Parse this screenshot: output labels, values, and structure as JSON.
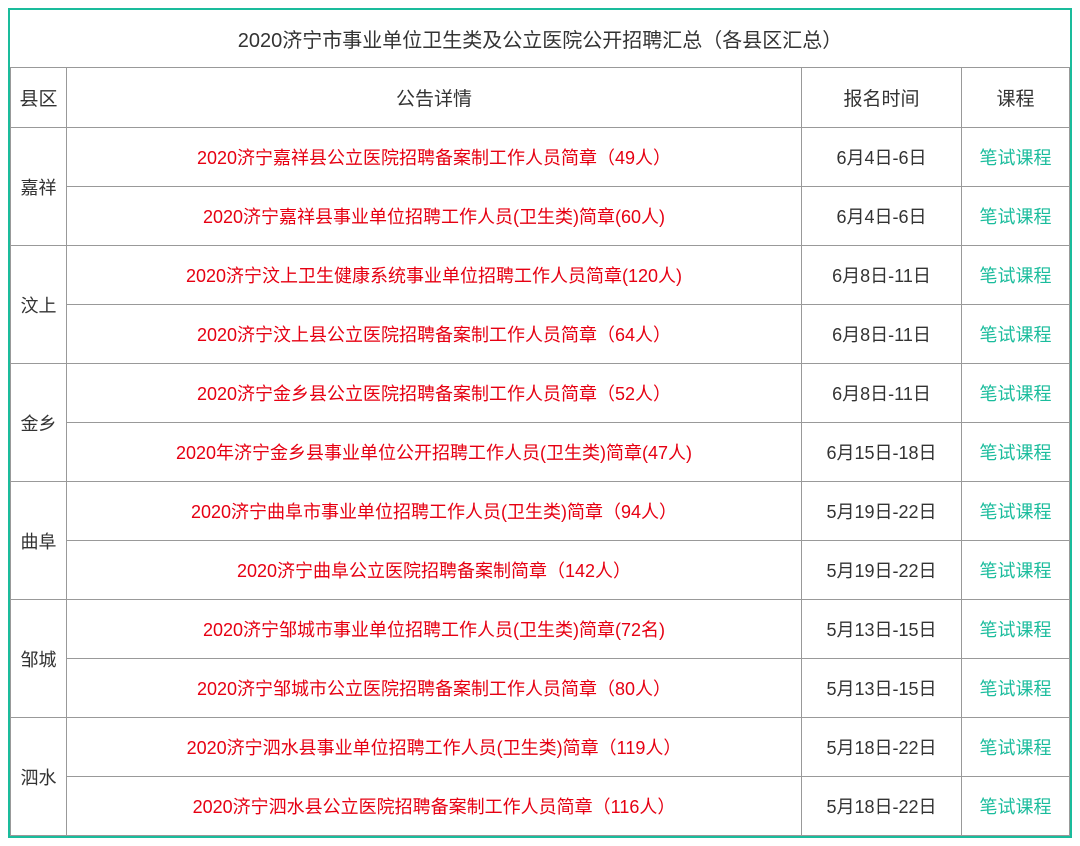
{
  "title": "2020济宁市事业单位卫生类及公立医院公开招聘汇总（各县区汇总）",
  "headers": {
    "county": "县区",
    "detail": "公告详情",
    "date": "报名时间",
    "course": "课程"
  },
  "colors": {
    "outer_border": "#1abc9c",
    "cell_border": "#999999",
    "text_black": "#333333",
    "link_red": "#e60012",
    "link_green": "#1abc9c",
    "background": "#ffffff"
  },
  "fonts": {
    "title_size": 20,
    "header_size": 19,
    "cell_size": 18
  },
  "layout": {
    "total_width": 1064,
    "col_county_width": 56,
    "col_date_width": 160,
    "col_course_width": 108
  },
  "groups": [
    {
      "county": "嘉祥",
      "rows": [
        {
          "detail": "2020济宁嘉祥县公立医院招聘备案制工作人员简章（49人）",
          "date": "6月4日-6日",
          "course": "笔试课程"
        },
        {
          "detail": "2020济宁嘉祥县事业单位招聘工作人员(卫生类)简章(60人)",
          "date": "6月4日-6日",
          "course": "笔试课程"
        }
      ]
    },
    {
      "county": "汶上",
      "rows": [
        {
          "detail": "2020济宁汶上卫生健康系统事业单位招聘工作人员简章(120人)",
          "date": "6月8日-11日",
          "course": "笔试课程"
        },
        {
          "detail": "2020济宁汶上县公立医院招聘备案制工作人员简章（64人）",
          "date": "6月8日-11日",
          "course": "笔试课程"
        }
      ]
    },
    {
      "county": "金乡",
      "rows": [
        {
          "detail": "2020济宁金乡县公立医院招聘备案制工作人员简章（52人）",
          "date": "6月8日-11日",
          "course": "笔试课程"
        },
        {
          "detail": "2020年济宁金乡县事业单位公开招聘工作人员(卫生类)简章(47人)",
          "date": "6月15日-18日",
          "course": "笔试课程"
        }
      ]
    },
    {
      "county": "曲阜",
      "rows": [
        {
          "detail": "2020济宁曲阜市事业单位招聘工作人员(卫生类)简章（94人）",
          "date": "5月19日-22日",
          "course": "笔试课程"
        },
        {
          "detail": "2020济宁曲阜公立医院招聘备案制简章（142人）",
          "date": "5月19日-22日",
          "course": "笔试课程"
        }
      ]
    },
    {
      "county": "邹城",
      "rows": [
        {
          "detail": "2020济宁邹城市事业单位招聘工作人员(卫生类)简章(72名)",
          "date": "5月13日-15日",
          "course": "笔试课程"
        },
        {
          "detail": "2020济宁邹城市公立医院招聘备案制工作人员简章（80人）",
          "date": "5月13日-15日",
          "course": "笔试课程"
        }
      ]
    },
    {
      "county": "泗水",
      "rows": [
        {
          "detail": "2020济宁泗水县事业单位招聘工作人员(卫生类)简章（119人）",
          "date": "5月18日-22日",
          "course": "笔试课程"
        },
        {
          "detail": "2020济宁泗水县公立医院招聘备案制工作人员简章（116人）",
          "date": "5月18日-22日",
          "course": "笔试课程"
        }
      ]
    }
  ]
}
